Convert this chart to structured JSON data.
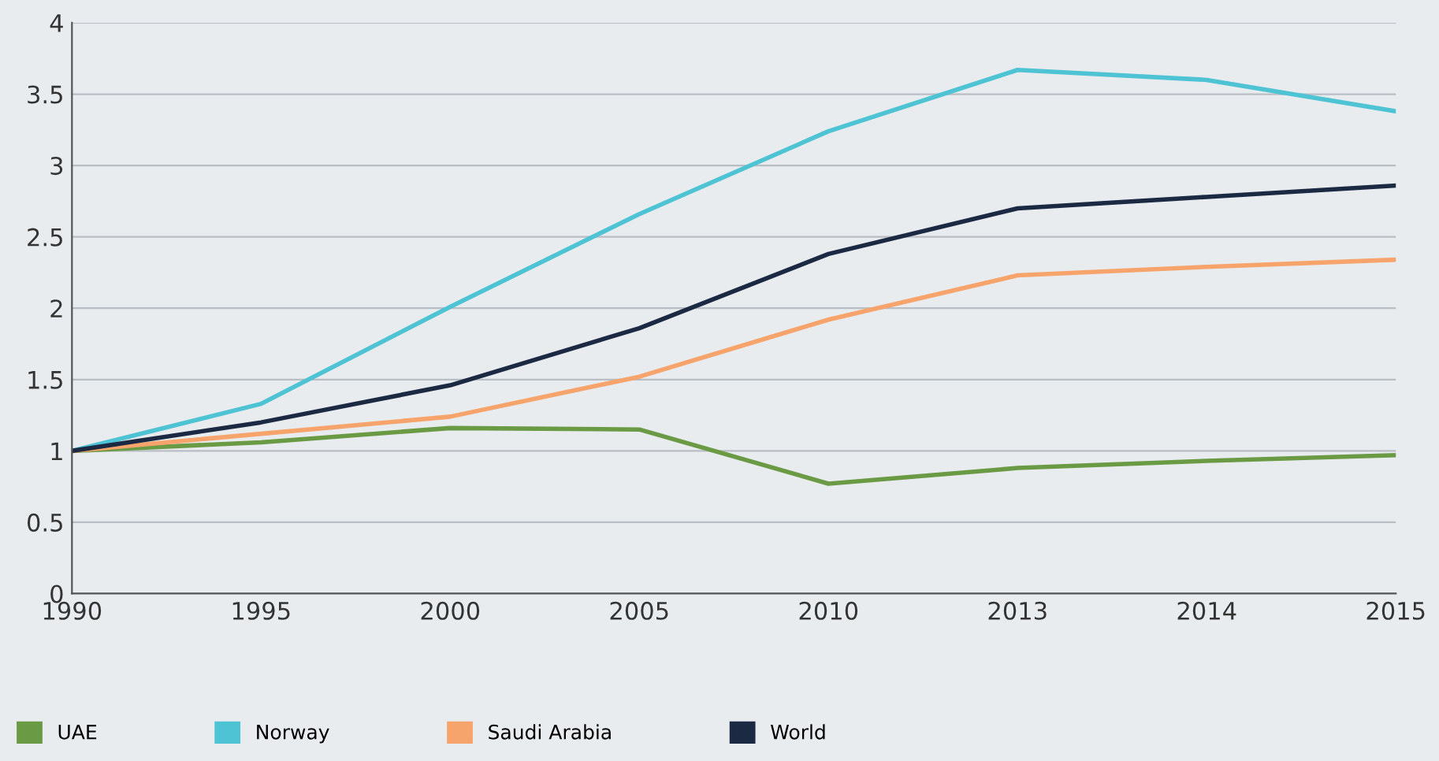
{
  "chart_data": {
    "type": "line",
    "categories": [
      "1990",
      "1995",
      "2000",
      "2005",
      "2010",
      "2013",
      "2014",
      "2015"
    ],
    "series": [
      {
        "name": "UAE",
        "color": "#6b9a45",
        "values": [
          1.0,
          1.06,
          1.16,
          1.15,
          0.77,
          0.88,
          0.93,
          0.97
        ]
      },
      {
        "name": "Norway",
        "color": "#4dc3d3",
        "values": [
          1.0,
          1.33,
          2.01,
          2.66,
          3.24,
          3.67,
          3.6,
          3.38
        ]
      },
      {
        "name": "Saudi Arabia",
        "color": "#f6a46c",
        "values": [
          1.0,
          1.12,
          1.24,
          1.52,
          1.92,
          2.23,
          2.29,
          2.34
        ]
      },
      {
        "name": "World",
        "color": "#1b2943",
        "values": [
          1.0,
          1.2,
          1.46,
          1.86,
          2.38,
          2.7,
          2.78,
          2.86
        ]
      }
    ],
    "ylim": [
      0,
      4
    ],
    "yticks": [
      0,
      0.5,
      1,
      1.5,
      2,
      2.5,
      3,
      3.5,
      4
    ],
    "grid": "y",
    "legend": "bottom",
    "marker": "none",
    "line_style": "solid"
  }
}
